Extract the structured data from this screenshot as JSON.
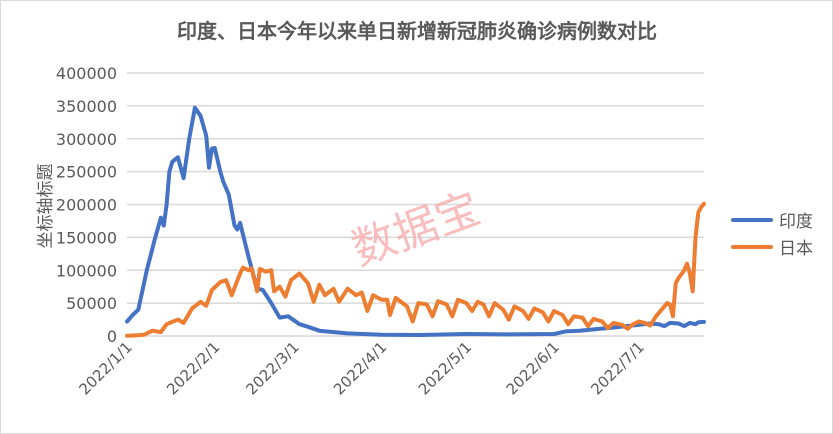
{
  "chart_data": {
    "type": "line",
    "title": "印度、日本今年以来单日新增新冠肺炎确诊病例数对比",
    "xlabel": "",
    "ylabel": "坐标轴标题",
    "year": 2022,
    "ylim": [
      0,
      400000
    ],
    "yticks": [
      0,
      50000,
      100000,
      150000,
      200000,
      250000,
      300000,
      350000,
      400000
    ],
    "xticks": [
      "2022/1/1",
      "2022/2/1",
      "2022/3/1",
      "2022/4/1",
      "2022/5/1",
      "2022/6/1",
      "2022/7/1"
    ],
    "xrange": [
      "1/1",
      "7/24"
    ],
    "grid": true,
    "legend": "right",
    "watermark": "数据宝",
    "series": [
      {
        "name": "印度",
        "color": "#4472C4",
        "points": [
          [
            "1/1",
            22000
          ],
          [
            "1/3",
            32000
          ],
          [
            "1/5",
            40000
          ],
          [
            "1/8",
            100000
          ],
          [
            "1/11",
            150000
          ],
          [
            "1/13",
            180000
          ],
          [
            "1/14",
            168000
          ],
          [
            "1/15",
            200000
          ],
          [
            "1/16",
            250000
          ],
          [
            "1/17",
            265000
          ],
          [
            "1/19",
            272000
          ],
          [
            "1/21",
            240000
          ],
          [
            "1/23",
            300000
          ],
          [
            "1/25",
            347000
          ],
          [
            "1/27",
            335000
          ],
          [
            "1/29",
            305000
          ],
          [
            "1/30",
            256000
          ],
          [
            "1/31",
            285000
          ],
          [
            "2/1",
            286000
          ],
          [
            "2/3",
            250000
          ],
          [
            "2/4",
            235000
          ],
          [
            "2/6",
            215000
          ],
          [
            "2/8",
            168000
          ],
          [
            "2/9",
            162000
          ],
          [
            "2/10",
            172000
          ],
          [
            "2/13",
            120000
          ],
          [
            "2/16",
            72000
          ],
          [
            "2/18",
            70000
          ],
          [
            "2/21",
            50000
          ],
          [
            "2/24",
            28000
          ],
          [
            "2/27",
            30000
          ],
          [
            "3/3",
            18000
          ],
          [
            "3/6",
            14000
          ],
          [
            "3/10",
            8000
          ],
          [
            "3/20",
            4000
          ],
          [
            "4/1",
            2000
          ],
          [
            "4/15",
            1500
          ],
          [
            "5/1",
            3000
          ],
          [
            "5/15",
            2500
          ],
          [
            "6/1",
            3000
          ],
          [
            "6/5",
            7000
          ],
          [
            "6/10",
            8000
          ],
          [
            "6/15",
            10000
          ],
          [
            "6/22",
            13000
          ],
          [
            "7/1",
            17000
          ],
          [
            "7/5",
            19000
          ],
          [
            "7/8",
            18000
          ],
          [
            "7/10",
            15000
          ],
          [
            "7/12",
            20000
          ],
          [
            "7/15",
            19000
          ],
          [
            "7/17",
            15000
          ],
          [
            "7/19",
            20000
          ],
          [
            "7/21",
            18000
          ],
          [
            "7/22",
            21000
          ],
          [
            "7/24",
            21500
          ]
        ]
      },
      {
        "name": "日本",
        "color": "#ED7D31",
        "points": [
          [
            "1/1",
            500
          ],
          [
            "1/5",
            1000
          ],
          [
            "1/7",
            2000
          ],
          [
            "1/10",
            8000
          ],
          [
            "1/13",
            6000
          ],
          [
            "1/15",
            18000
          ],
          [
            "1/19",
            25000
          ],
          [
            "1/21",
            20000
          ],
          [
            "1/24",
            42000
          ],
          [
            "1/27",
            52000
          ],
          [
            "1/29",
            46000
          ],
          [
            "1/31",
            70000
          ],
          [
            "2/3",
            82000
          ],
          [
            "2/5",
            85000
          ],
          [
            "2/7",
            62000
          ],
          [
            "2/10",
            95000
          ],
          [
            "2/11",
            104000
          ],
          [
            "2/13",
            100000
          ],
          [
            "2/14",
            103000
          ],
          [
            "2/16",
            68000
          ],
          [
            "2/17",
            102000
          ],
          [
            "2/19",
            98000
          ],
          [
            "2/21",
            100000
          ],
          [
            "2/22",
            68000
          ],
          [
            "2/24",
            75000
          ],
          [
            "2/26",
            60000
          ],
          [
            "2/28",
            85000
          ],
          [
            "3/3",
            95000
          ],
          [
            "3/6",
            80000
          ],
          [
            "3/8",
            52000
          ],
          [
            "3/10",
            78000
          ],
          [
            "3/12",
            62000
          ],
          [
            "3/15",
            72000
          ],
          [
            "3/17",
            52000
          ],
          [
            "3/20",
            72000
          ],
          [
            "3/23",
            62000
          ],
          [
            "3/25",
            66000
          ],
          [
            "3/27",
            38000
          ],
          [
            "3/29",
            62000
          ],
          [
            "4/1",
            55000
          ],
          [
            "4/3",
            55000
          ],
          [
            "4/4",
            32000
          ],
          [
            "4/6",
            58000
          ],
          [
            "4/10",
            45000
          ],
          [
            "4/12",
            22000
          ],
          [
            "4/14",
            50000
          ],
          [
            "4/17",
            48000
          ],
          [
            "4/19",
            30000
          ],
          [
            "4/21",
            53000
          ],
          [
            "4/24",
            48000
          ],
          [
            "4/26",
            30000
          ],
          [
            "4/28",
            55000
          ],
          [
            "5/1",
            50000
          ],
          [
            "5/3",
            38000
          ],
          [
            "5/5",
            52000
          ],
          [
            "5/7",
            48000
          ],
          [
            "5/9",
            30000
          ],
          [
            "5/11",
            50000
          ],
          [
            "5/14",
            40000
          ],
          [
            "5/16",
            25000
          ],
          [
            "5/18",
            45000
          ],
          [
            "5/21",
            38000
          ],
          [
            "5/23",
            26000
          ],
          [
            "5/25",
            42000
          ],
          [
            "5/28",
            36000
          ],
          [
            "5/30",
            22000
          ],
          [
            "6/1",
            38000
          ],
          [
            "6/4",
            32000
          ],
          [
            "6/6",
            18000
          ],
          [
            "6/8",
            30000
          ],
          [
            "6/11",
            28000
          ],
          [
            "6/13",
            15000
          ],
          [
            "6/15",
            26000
          ],
          [
            "6/18",
            22000
          ],
          [
            "6/20",
            12000
          ],
          [
            "6/22",
            20000
          ],
          [
            "6/25",
            17000
          ],
          [
            "6/27",
            11000
          ],
          [
            "6/29",
            18000
          ],
          [
            "7/1",
            22000
          ],
          [
            "7/3",
            20000
          ],
          [
            "7/5",
            16000
          ],
          [
            "7/7",
            30000
          ],
          [
            "7/9",
            40000
          ],
          [
            "7/11",
            50000
          ],
          [
            "7/12",
            48000
          ],
          [
            "7/13",
            30000
          ],
          [
            "7/14",
            80000
          ],
          [
            "7/15",
            88000
          ],
          [
            "7/17",
            100000
          ],
          [
            "7/18",
            110000
          ],
          [
            "7/19",
            95000
          ],
          [
            "7/20",
            68000
          ],
          [
            "7/21",
            150000
          ],
          [
            "7/22",
            188000
          ],
          [
            "7/23",
            196000
          ],
          [
            "7/24",
            201000
          ]
        ]
      }
    ]
  }
}
